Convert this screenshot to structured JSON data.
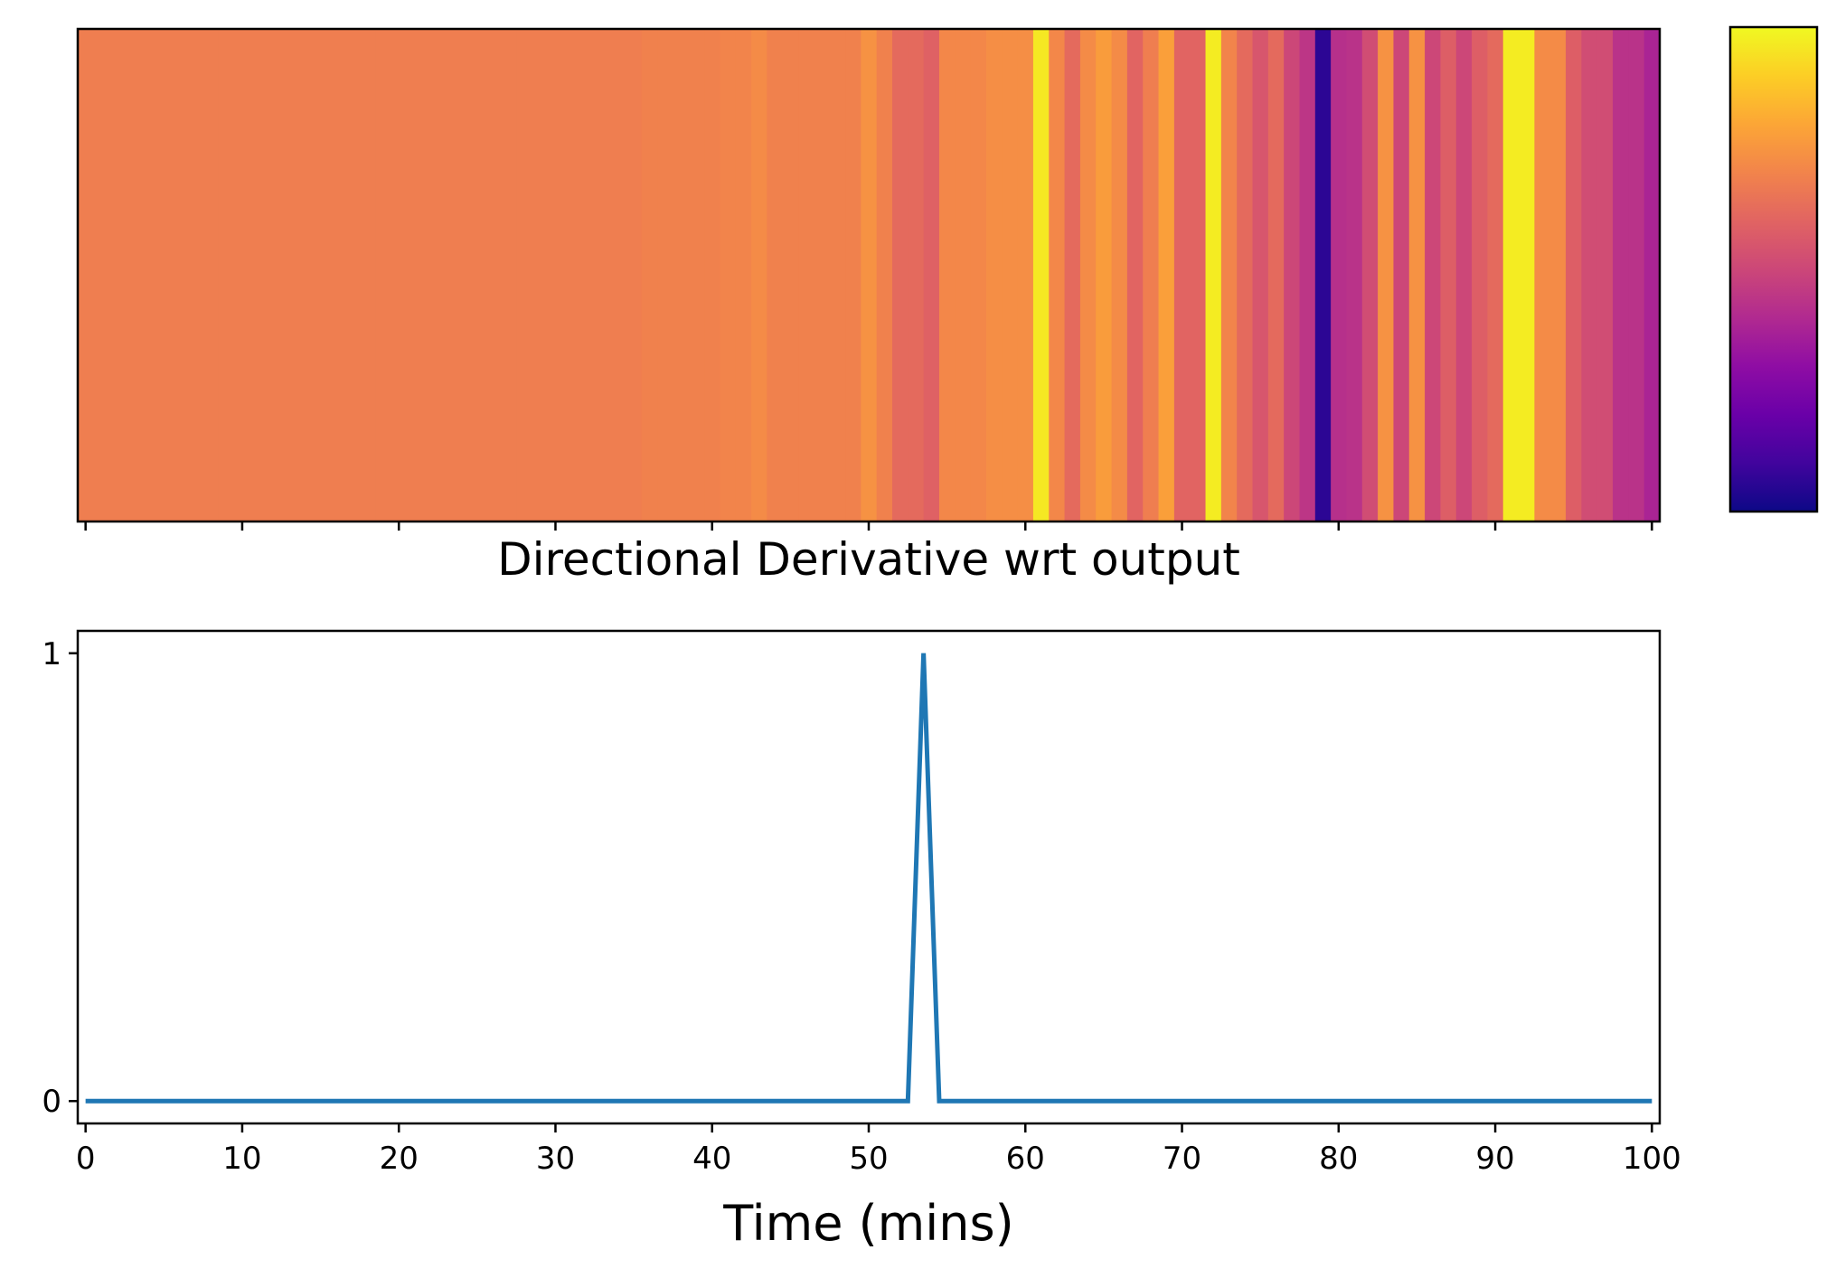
{
  "chart_data": [
    {
      "type": "heatmap",
      "title": "",
      "colormap": "plasma",
      "colorbar": {
        "tick_labels": []
      },
      "x_ticks": [
        0,
        10,
        20,
        30,
        40,
        50,
        60,
        70,
        80,
        90,
        100
      ],
      "x_tick_labels_shown": false,
      "xlim": [
        -0.5,
        100.5
      ],
      "y_ticks": [],
      "cell_count": 101,
      "values": [
        0.68,
        0.68,
        0.68,
        0.68,
        0.68,
        0.68,
        0.68,
        0.68,
        0.68,
        0.68,
        0.68,
        0.68,
        0.68,
        0.68,
        0.68,
        0.68,
        0.68,
        0.68,
        0.68,
        0.68,
        0.68,
        0.68,
        0.68,
        0.68,
        0.68,
        0.68,
        0.68,
        0.68,
        0.68,
        0.68,
        0.68,
        0.68,
        0.68,
        0.68,
        0.68,
        0.68,
        0.69,
        0.69,
        0.69,
        0.69,
        0.69,
        0.7,
        0.7,
        0.72,
        0.69,
        0.69,
        0.69,
        0.69,
        0.69,
        0.69,
        0.74,
        0.69,
        0.62,
        0.62,
        0.59,
        0.71,
        0.71,
        0.71,
        0.73,
        0.73,
        0.73,
        0.96,
        0.71,
        0.62,
        0.72,
        0.77,
        0.72,
        0.6,
        0.68,
        0.78,
        0.6,
        0.6,
        0.97,
        0.7,
        0.62,
        0.55,
        0.62,
        0.5,
        0.44,
        0.06,
        0.42,
        0.43,
        0.52,
        0.74,
        0.5,
        0.74,
        0.5,
        0.58,
        0.5,
        0.58,
        0.62,
        0.97,
        0.97,
        0.72,
        0.72,
        0.58,
        0.52,
        0.52,
        0.43,
        0.43,
        0.38
      ]
    },
    {
      "type": "line",
      "title": "Directional Derivative wrt output",
      "xlabel": "Time (mins)",
      "ylabel": "",
      "xlim": [
        -0.5,
        100.5
      ],
      "ylim": [
        -0.05,
        1.05
      ],
      "x_ticks": [
        0,
        10,
        20,
        30,
        40,
        50,
        60,
        70,
        80,
        90,
        100
      ],
      "x_tick_labels": [
        "0",
        "10",
        "20",
        "30",
        "40",
        "50",
        "60",
        "70",
        "80",
        "90",
        "100"
      ],
      "y_ticks": [
        0,
        1
      ],
      "y_tick_labels": [
        "0",
        "1"
      ],
      "grid": false,
      "series": [
        {
          "color": "#1f77b4",
          "x": [
            0,
            52.5,
            53.5,
            54.5,
            100
          ],
          "y": [
            0,
            0,
            1,
            0,
            0
          ]
        }
      ]
    }
  ]
}
